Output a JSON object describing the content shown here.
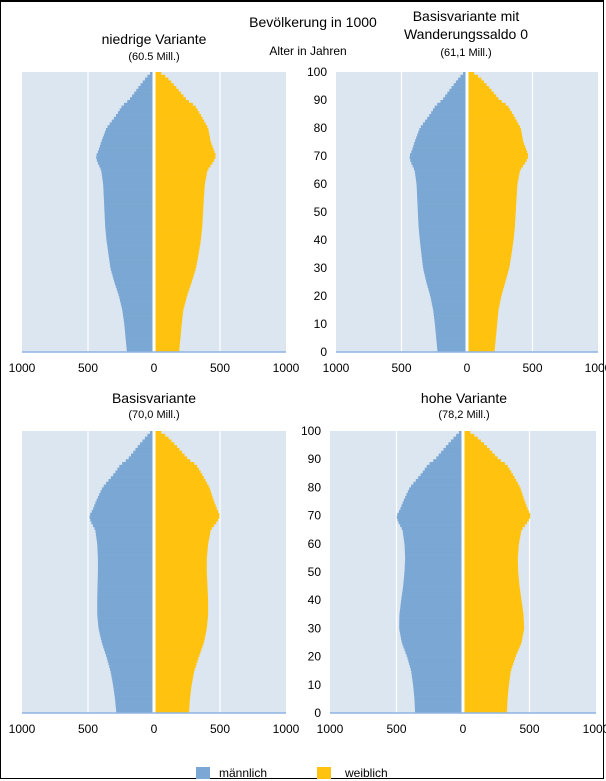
{
  "header": {
    "title": "Bevölkerung in 1000",
    "age_axis_title": "Alter in Jahren"
  },
  "colors": {
    "male": "#7aa7d3",
    "female": "#ffc20e",
    "plot_bg": "#dce6f1",
    "grid": "#ffffff",
    "axis": "#8eb4e3"
  },
  "legend": {
    "male_label": "männlich",
    "female_label": "weiblich"
  },
  "chart_data": [
    {
      "type": "bar",
      "orientation": "horizontal-pyramid",
      "title": "niedrige Variante",
      "subtitle": "(60.5 Mill.)",
      "x_ticks": [
        "1000",
        "500",
        "0",
        "500",
        "1000"
      ],
      "y_ticks": [],
      "xlim": [
        -1000,
        1000
      ],
      "ylim": [
        0,
        100
      ],
      "age_knots": [
        0,
        5,
        10,
        15,
        20,
        25,
        30,
        35,
        40,
        45,
        50,
        55,
        60,
        65,
        68,
        70,
        72,
        75,
        80,
        85,
        88,
        90,
        95,
        98,
        100
      ],
      "series": [
        {
          "name": "männlich",
          "values": [
            205,
            215,
            225,
            240,
            265,
            300,
            330,
            345,
            360,
            370,
            375,
            380,
            385,
            400,
            430,
            440,
            420,
            400,
            360,
            280,
            240,
            190,
            110,
            60,
            20
          ]
        },
        {
          "name": "weiblich",
          "values": [
            190,
            200,
            210,
            222,
            250,
            285,
            318,
            338,
            355,
            366,
            372,
            378,
            385,
            405,
            450,
            470,
            455,
            430,
            410,
            350,
            310,
            250,
            160,
            100,
            40
          ]
        }
      ]
    },
    {
      "type": "bar",
      "orientation": "horizontal-pyramid",
      "title": "Basisvariante mit Wanderungssaldo 0",
      "subtitle": "(61,1 Mill.)",
      "x_ticks": [
        "1000",
        "500",
        "0",
        "500",
        "1000"
      ],
      "y_ticks": [
        "0",
        "10",
        "20",
        "30",
        "40",
        "50",
        "60",
        "70",
        "80",
        "90",
        "100"
      ],
      "xlim": [
        -1000,
        1000
      ],
      "ylim": [
        0,
        100
      ],
      "age_knots": [
        0,
        5,
        10,
        15,
        20,
        25,
        30,
        35,
        40,
        45,
        50,
        55,
        60,
        65,
        68,
        70,
        72,
        75,
        80,
        85,
        88,
        90,
        95,
        98,
        100
      ],
      "series": [
        {
          "name": "männlich",
          "values": [
            225,
            235,
            245,
            258,
            280,
            310,
            335,
            348,
            360,
            370,
            375,
            380,
            385,
            400,
            430,
            440,
            420,
            400,
            360,
            280,
            240,
            190,
            110,
            60,
            20
          ]
        },
        {
          "name": "weiblich",
          "values": [
            210,
            220,
            230,
            240,
            262,
            292,
            322,
            340,
            355,
            366,
            372,
            378,
            385,
            405,
            450,
            470,
            455,
            430,
            410,
            350,
            310,
            250,
            160,
            100,
            40
          ]
        }
      ]
    },
    {
      "type": "bar",
      "orientation": "horizontal-pyramid",
      "title": "Basisvariante",
      "subtitle": "(70,0 Mill.)",
      "x_ticks": [
        "1000",
        "500",
        "0",
        "500",
        "1000"
      ],
      "y_ticks": [],
      "xlim": [
        -1000,
        1000
      ],
      "ylim": [
        0,
        100
      ],
      "age_knots": [
        0,
        5,
        10,
        15,
        20,
        25,
        30,
        35,
        40,
        45,
        50,
        55,
        60,
        65,
        68,
        70,
        72,
        75,
        80,
        85,
        88,
        90,
        95,
        98,
        100
      ],
      "series": [
        {
          "name": "männlich",
          "values": [
            285,
            295,
            310,
            330,
            360,
            395,
            420,
            430,
            430,
            428,
            425,
            425,
            430,
            445,
            480,
            490,
            465,
            440,
            390,
            300,
            255,
            200,
            115,
            60,
            20
          ]
        },
        {
          "name": "weiblich",
          "values": [
            265,
            272,
            285,
            305,
            340,
            378,
            400,
            410,
            410,
            405,
            400,
            400,
            410,
            430,
            480,
            500,
            480,
            455,
            420,
            360,
            320,
            260,
            165,
            100,
            40
          ]
        }
      ]
    },
    {
      "type": "bar",
      "orientation": "horizontal-pyramid",
      "title": "hohe Variante",
      "subtitle": "(78,2 Mill.)",
      "x_ticks": [
        "1000",
        "500",
        "0",
        "500",
        "1000"
      ],
      "y_ticks": [
        "0",
        "10",
        "20",
        "30",
        "40",
        "50",
        "60",
        "70",
        "80",
        "90",
        "100"
      ],
      "xlim": [
        -1000,
        1000
      ],
      "ylim": [
        0,
        100
      ],
      "age_knots": [
        0,
        5,
        10,
        15,
        20,
        25,
        30,
        35,
        40,
        45,
        50,
        55,
        60,
        65,
        68,
        70,
        72,
        75,
        80,
        85,
        88,
        90,
        95,
        98,
        100
      ],
      "series": [
        {
          "name": "männlich",
          "values": [
            360,
            365,
            375,
            390,
            420,
            460,
            480,
            478,
            465,
            450,
            440,
            435,
            440,
            455,
            490,
            500,
            475,
            450,
            400,
            310,
            265,
            210,
            120,
            62,
            20
          ]
        },
        {
          "name": "weiblich",
          "values": [
            330,
            335,
            345,
            360,
            395,
            440,
            460,
            455,
            440,
            425,
            415,
            412,
            420,
            440,
            490,
            510,
            490,
            465,
            430,
            370,
            330,
            270,
            170,
            100,
            40
          ]
        }
      ]
    }
  ]
}
